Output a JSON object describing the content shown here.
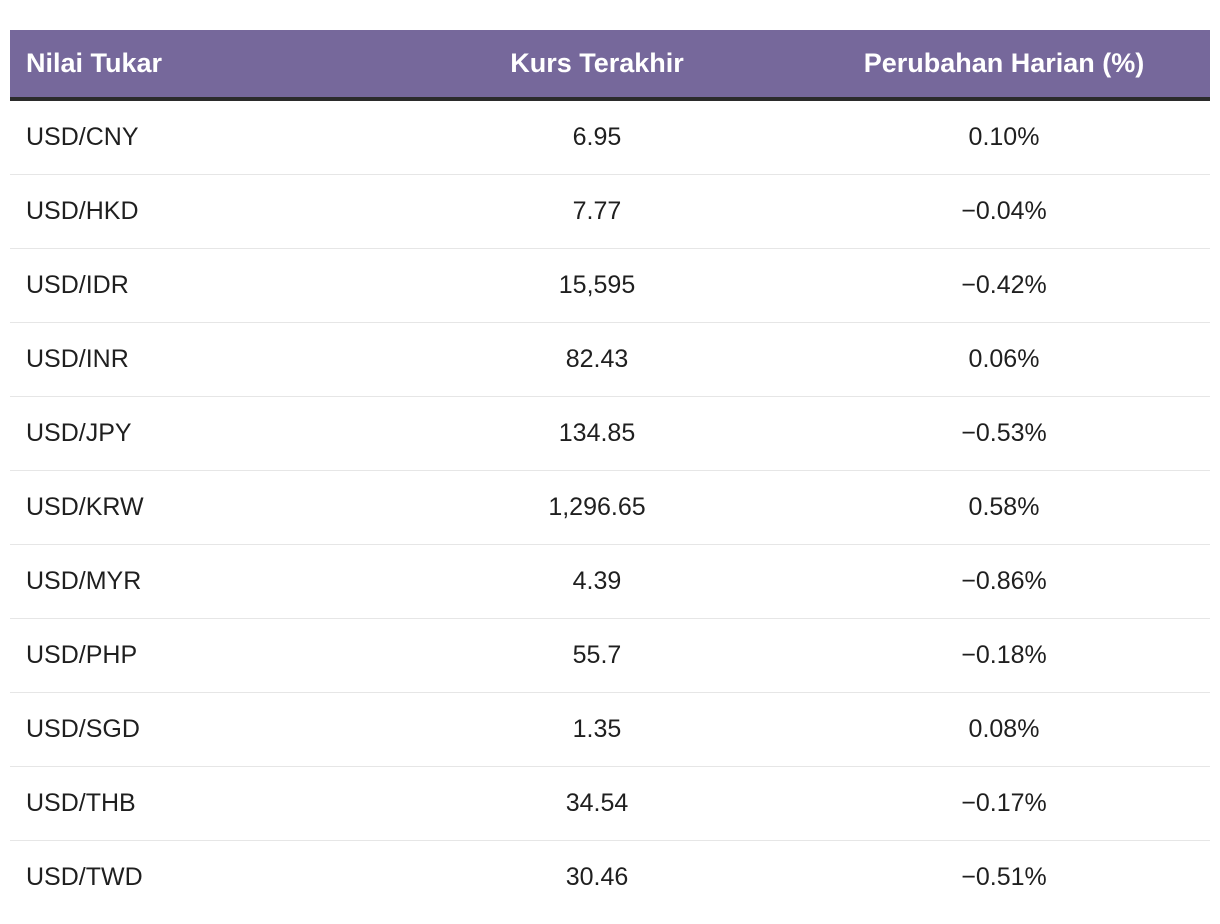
{
  "table": {
    "headers": {
      "pair": "Nilai Tukar",
      "rate": "Kurs Terakhir",
      "change": "Perubahan Harian (%)"
    },
    "rows": [
      {
        "pair": "USD/CNY",
        "rate": "6.95",
        "change": "0.10%"
      },
      {
        "pair": "USD/HKD",
        "rate": "7.77",
        "change": "−0.04%"
      },
      {
        "pair": "USD/IDR",
        "rate": "15,595",
        "change": "−0.42%"
      },
      {
        "pair": "USD/INR",
        "rate": "82.43",
        "change": "0.06%"
      },
      {
        "pair": "USD/JPY",
        "rate": "134.85",
        "change": "−0.53%"
      },
      {
        "pair": "USD/KRW",
        "rate": "1,296.65",
        "change": "0.58%"
      },
      {
        "pair": "USD/MYR",
        "rate": "4.39",
        "change": "−0.86%"
      },
      {
        "pair": "USD/PHP",
        "rate": "55.7",
        "change": "−0.18%"
      },
      {
        "pair": "USD/SGD",
        "rate": "1.35",
        "change": "0.08%"
      },
      {
        "pair": "USD/THB",
        "rate": "34.54",
        "change": "−0.17%"
      },
      {
        "pair": "USD/TWD",
        "rate": "30.46",
        "change": "−0.51%"
      }
    ]
  },
  "colors": {
    "header_bg": "#76689b",
    "header_text": "#ffffff",
    "header_rule": "#2b2b2b",
    "row_divider": "#e6e6e6"
  }
}
